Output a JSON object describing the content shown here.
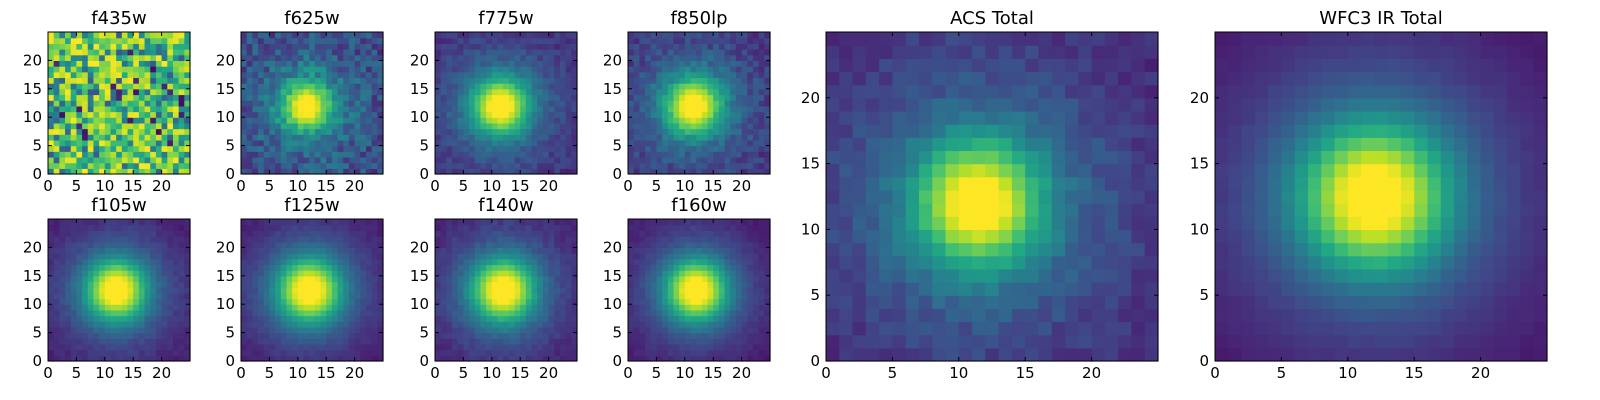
{
  "chart_data": [
    {
      "type": "heatmap",
      "title": "f435w",
      "profile": "noise",
      "grid_size": 25,
      "xlim": [
        0,
        25
      ],
      "ylim": [
        0,
        25
      ],
      "xticks": [
        0,
        5,
        10,
        15,
        20
      ],
      "yticks": [
        0,
        5,
        10,
        15,
        20
      ],
      "colormap": "viridis"
    },
    {
      "type": "heatmap",
      "title": "f625w",
      "profile": "gaussian",
      "center": [
        11.5,
        12
      ],
      "sigma": 2.8,
      "noise": 0.26,
      "floor": 0.22,
      "grid_size": 25,
      "xlim": [
        0,
        25
      ],
      "ylim": [
        0,
        25
      ],
      "xticks": [
        0,
        5,
        10,
        15,
        20
      ],
      "yticks": [
        0,
        5,
        10,
        15,
        20
      ],
      "colormap": "viridis"
    },
    {
      "type": "heatmap",
      "title": "f775w",
      "profile": "gaussian",
      "center": [
        11.5,
        12
      ],
      "sigma": 3.3,
      "noise": 0.12,
      "floor": 0.12,
      "grid_size": 25,
      "xlim": [
        0,
        25
      ],
      "ylim": [
        0,
        25
      ],
      "xticks": [
        0,
        5,
        10,
        15,
        20
      ],
      "yticks": [
        0,
        5,
        10,
        15,
        20
      ],
      "colormap": "viridis"
    },
    {
      "type": "heatmap",
      "title": "f850lp",
      "profile": "gaussian",
      "center": [
        11.5,
        12
      ],
      "sigma": 3.3,
      "noise": 0.16,
      "floor": 0.14,
      "grid_size": 25,
      "xlim": [
        0,
        25
      ],
      "ylim": [
        0,
        25
      ],
      "xticks": [
        0,
        5,
        10,
        15,
        20
      ],
      "yticks": [
        0,
        5,
        10,
        15,
        20
      ],
      "colormap": "viridis"
    },
    {
      "type": "heatmap",
      "title": "f105w",
      "profile": "gaussian",
      "center": [
        12,
        12.5
      ],
      "sigma": 3.6,
      "noise": 0.06,
      "floor": 0.05,
      "grid_size": 25,
      "xlim": [
        0,
        25
      ],
      "ylim": [
        0,
        25
      ],
      "xticks": [
        0,
        5,
        10,
        15,
        20
      ],
      "yticks": [
        0,
        5,
        10,
        15,
        20
      ],
      "colormap": "viridis"
    },
    {
      "type": "heatmap",
      "title": "f125w",
      "profile": "gaussian",
      "center": [
        12,
        12.5
      ],
      "sigma": 3.8,
      "noise": 0.05,
      "floor": 0.04,
      "grid_size": 25,
      "xlim": [
        0,
        25
      ],
      "ylim": [
        0,
        25
      ],
      "xticks": [
        0,
        5,
        10,
        15,
        20
      ],
      "yticks": [
        0,
        5,
        10,
        15,
        20
      ],
      "colormap": "viridis"
    },
    {
      "type": "heatmap",
      "title": "f140w",
      "profile": "gaussian",
      "center": [
        12,
        12.5
      ],
      "sigma": 3.7,
      "noise": 0.07,
      "floor": 0.06,
      "grid_size": 25,
      "xlim": [
        0,
        25
      ],
      "ylim": [
        0,
        25
      ],
      "xticks": [
        0,
        5,
        10,
        15,
        20
      ],
      "yticks": [
        0,
        5,
        10,
        15,
        20
      ],
      "colormap": "viridis"
    },
    {
      "type": "heatmap",
      "title": "f160w",
      "profile": "gaussian",
      "center": [
        12,
        12.5
      ],
      "sigma": 3.6,
      "noise": 0.05,
      "floor": 0.04,
      "grid_size": 25,
      "xlim": [
        0,
        25
      ],
      "ylim": [
        0,
        25
      ],
      "xticks": [
        0,
        5,
        10,
        15,
        20
      ],
      "yticks": [
        0,
        5,
        10,
        15,
        20
      ],
      "colormap": "viridis"
    },
    {
      "type": "heatmap",
      "title": "ACS Total",
      "profile": "gaussian",
      "center": [
        11.5,
        12
      ],
      "sigma": 3.2,
      "noise": 0.11,
      "floor": 0.12,
      "grid_size": 25,
      "xlim": [
        0,
        25
      ],
      "ylim": [
        0,
        25
      ],
      "xticks": [
        0,
        5,
        10,
        15,
        20
      ],
      "yticks": [
        0,
        5,
        10,
        15,
        20
      ],
      "colormap": "viridis"
    },
    {
      "type": "heatmap",
      "title": "WFC3 IR Total",
      "profile": "gaussian",
      "center": [
        12,
        12.5
      ],
      "sigma": 3.8,
      "noise": 0.02,
      "floor": 0.03,
      "grid_size": 25,
      "xlim": [
        0,
        25
      ],
      "ylim": [
        0,
        25
      ],
      "xticks": [
        0,
        5,
        10,
        15,
        20
      ],
      "yticks": [
        0,
        5,
        10,
        15,
        20
      ],
      "colormap": "viridis"
    }
  ]
}
